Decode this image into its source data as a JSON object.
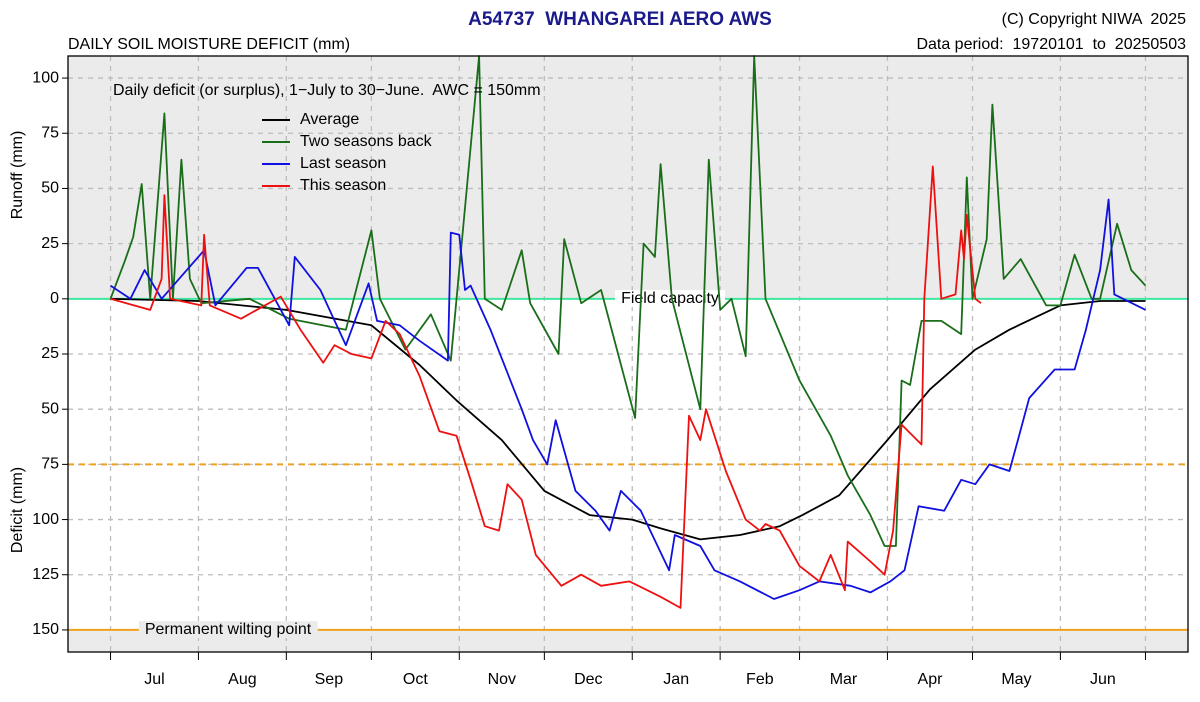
{
  "chart_data": {
    "type": "line",
    "title": "A54737  WHANGAREI AERO AWS",
    "subtitle": "DAILY SOIL MOISTURE DEFICIT (mm)",
    "copyright": "(C) Copyright NIWA  2025",
    "data_period": "Data period:  19720101  to  20250503",
    "annotation": "Daily deficit (or surplus), 1−July to 30−June.  AWC = 150mm",
    "y_label_top": "Runoff (mm)",
    "y_label_bottom": "Deficit (mm)",
    "xlim": [
      -15,
      380
    ],
    "ylim": [
      -160,
      110
    ],
    "month_starts": [
      0,
      31,
      62,
      92,
      123,
      153,
      184,
      215,
      243,
      274,
      304,
      335,
      365
    ],
    "months": [
      "Jul",
      "Aug",
      "Sep",
      "Oct",
      "Nov",
      "Dec",
      "Jan",
      "Feb",
      "Mar",
      "Apr",
      "May",
      "Jun"
    ],
    "yticks": [
      100,
      75,
      50,
      25,
      0,
      {
        "value": -25,
        "label": "25"
      },
      {
        "value": -50,
        "label": "50"
      },
      {
        "value": -75,
        "label": "75"
      },
      {
        "value": -100,
        "label": "100"
      },
      {
        "value": -125,
        "label": "125"
      },
      {
        "value": -150,
        "label": "150"
      }
    ],
    "grid": true,
    "reference_lines": [
      {
        "value": 0,
        "label": "Field capacity",
        "color": "#3ee8a0",
        "shade": "above"
      },
      {
        "value": -75,
        "color": "#f0a020",
        "dashed": true
      },
      {
        "value": -150,
        "label": "Permanent wilting point",
        "color": "#f0a020",
        "shade": "below"
      }
    ],
    "series": [
      {
        "name": "Average",
        "color": "#000000",
        "x": [
          0,
          31,
          62,
          92,
          109,
          122,
          138,
          153,
          169,
          184,
          194,
          208,
          222,
          236,
          244,
          257,
          274,
          289,
          305,
          317,
          335,
          349,
          365
        ],
        "values": [
          0,
          -1,
          -5,
          -12,
          -30,
          -46,
          -64,
          -87,
          -98,
          -100,
          -104,
          -109,
          -107,
          -103,
          -98,
          -89,
          -64,
          -41,
          -23,
          -14,
          -3,
          -1,
          -1
        ]
      },
      {
        "name": "Two seasons back",
        "color": "#1a6e1a",
        "x": [
          0,
          5,
          8,
          11,
          14,
          19,
          22,
          25,
          28,
          32,
          49,
          63,
          83,
          92,
          95,
          104,
          113,
          120,
          130,
          132,
          138,
          145,
          148,
          158,
          160,
          166,
          173,
          185,
          188,
          192,
          194,
          198,
          208,
          211,
          215,
          219,
          224,
          227,
          231,
          243,
          254,
          260,
          268,
          273,
          277,
          279,
          282,
          286,
          293,
          300,
          302,
          304,
          309,
          311,
          315,
          321,
          330,
          335,
          340,
          346,
          349,
          355,
          360,
          365
        ],
        "values": [
          0,
          17,
          28,
          52,
          0,
          84,
          0,
          63,
          9,
          -2,
          0,
          -9,
          -14,
          31,
          0,
          -23,
          -7,
          -28,
          110,
          0,
          -5,
          22,
          -2,
          -25,
          27,
          -2,
          4,
          -54,
          25,
          19,
          61,
          0,
          -50,
          63,
          -5,
          0,
          -26,
          110,
          0,
          -37,
          -62,
          -80,
          -98,
          -112,
          -112,
          -37,
          -39,
          -10,
          -10,
          -16,
          55,
          0,
          27,
          88,
          9,
          18,
          -3,
          -3,
          20,
          0,
          0,
          34,
          13,
          6
        ]
      },
      {
        "name": "Last season",
        "color": "#1010e0",
        "x": [
          0,
          7,
          12,
          18,
          33,
          37,
          48,
          52,
          63,
          65,
          74,
          83,
          91,
          94,
          102,
          109,
          119,
          120,
          123,
          125,
          127,
          134,
          145,
          149,
          154,
          157,
          164,
          171,
          176,
          180,
          187,
          197,
          199,
          208,
          213,
          222,
          234,
          243,
          250,
          261,
          268,
          275,
          280,
          285,
          294,
          300,
          305,
          310,
          317,
          320,
          324,
          333,
          340,
          344,
          349,
          352,
          354,
          365
        ],
        "values": [
          6,
          0,
          13,
          0,
          22,
          -3,
          14,
          14,
          -12,
          19,
          4,
          -21,
          7,
          -10,
          -12,
          -19,
          -28,
          30,
          29,
          4,
          6,
          -14,
          -50,
          -64,
          -75,
          -55,
          -87,
          -96,
          -105,
          -87,
          -96,
          -123,
          -107,
          -112,
          -123,
          -128,
          -136,
          -132,
          -128,
          -130,
          -133,
          -128,
          -123,
          -94,
          -96,
          -82,
          -84,
          -75,
          -78,
          -64,
          -45,
          -32,
          -32,
          -14,
          13,
          45,
          2,
          -5
        ]
      },
      {
        "name": "This season",
        "color": "#ee1010",
        "x": [
          0,
          14,
          18,
          19,
          21,
          32,
          33,
          35,
          46,
          60,
          67,
          75,
          79,
          85,
          92,
          97,
          102,
          109,
          116,
          122,
          127,
          132,
          137,
          140,
          145,
          150,
          159,
          166,
          173,
          183,
          194,
          201,
          204,
          208,
          210,
          217,
          224,
          229,
          231,
          236,
          243,
          250,
          254,
          259,
          260,
          268,
          273,
          276,
          279,
          286,
          287,
          290,
          293,
          298,
          300,
          301,
          302,
          305,
          307
        ],
        "values": [
          0,
          -5,
          9,
          47,
          0,
          -3,
          29,
          -3,
          -9,
          1,
          -14,
          -29,
          -21,
          -25,
          -27,
          -10,
          -16,
          -35,
          -60,
          -62,
          -82,
          -103,
          -105,
          -84,
          -91,
          -116,
          -130,
          -125,
          -130,
          -128,
          -135,
          -140,
          -53,
          -64,
          -50,
          -78,
          -100,
          -105,
          -102,
          -105,
          -121,
          -128,
          -116,
          -132,
          -110,
          -119,
          -125,
          -105,
          -57,
          -66,
          0,
          60,
          0,
          2,
          31,
          18,
          38,
          0,
          -2
        ]
      }
    ]
  }
}
